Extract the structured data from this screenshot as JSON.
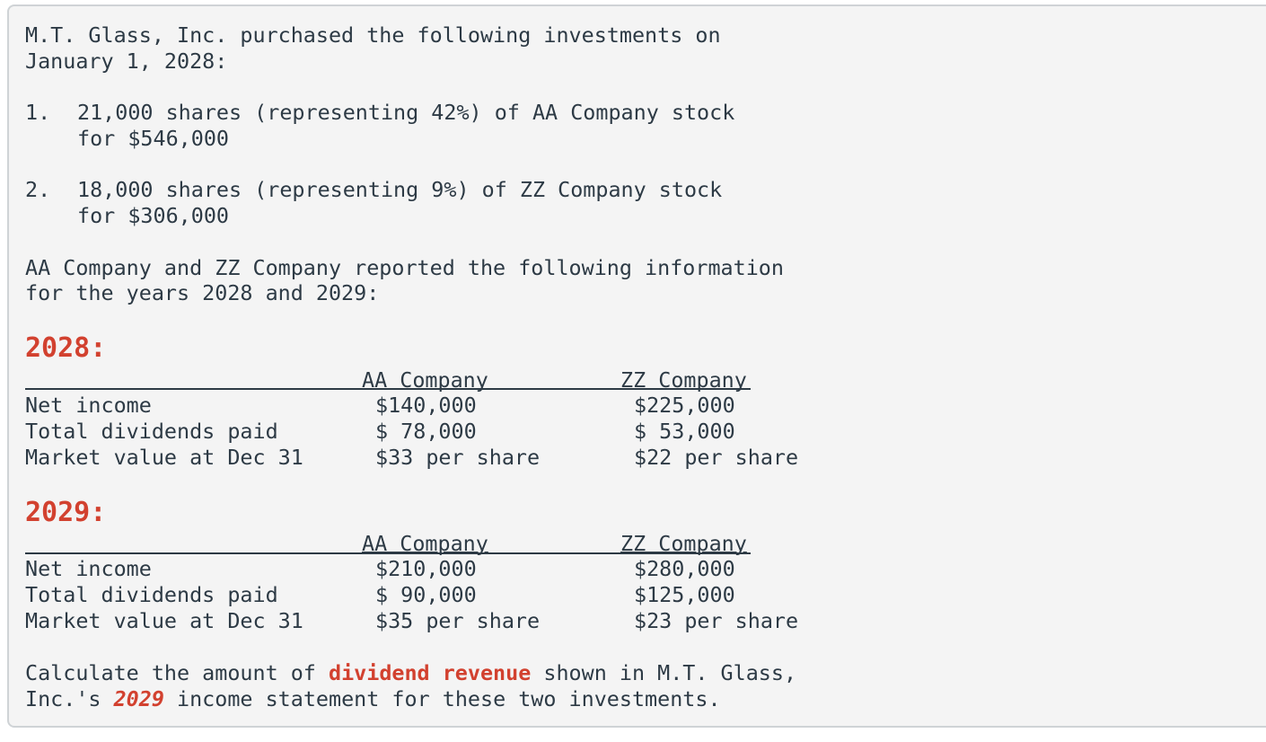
{
  "intro": [
    "M.T. Glass, Inc. purchased the following investments on",
    "January 1, 2028:"
  ],
  "list": [
    {
      "num": "1.",
      "lines": [
        "21,000 shares (representing 42%) of AA Company stock",
        "for $546,000"
      ]
    },
    {
      "num": "2.",
      "lines": [
        "18,000 shares (representing 9%) of ZZ Company stock",
        "for $306,000"
      ]
    }
  ],
  "info": [
    "AA Company and ZZ Company reported the following information",
    "for the years 2028 and 2029:"
  ],
  "tables": [
    {
      "year": "2028:",
      "headers": [
        "AA Company",
        "ZZ Company"
      ],
      "rows": [
        {
          "label": "Net income",
          "aa": "$140,000",
          "zz": "$225,000"
        },
        {
          "label": "Total dividends paid",
          "aa": "$ 78,000",
          "zz": "$ 53,000"
        },
        {
          "label": "Market value at Dec 31",
          "aa": "$33 per share",
          "zz": "$22 per share"
        }
      ]
    },
    {
      "year": "2029:",
      "headers": [
        "AA Company",
        "ZZ Company"
      ],
      "rows": [
        {
          "label": "Net income",
          "aa": "$210,000",
          "zz": "$280,000"
        },
        {
          "label": "Total dividends paid",
          "aa": "$ 90,000",
          "zz": "$125,000"
        },
        {
          "label": "Market value at Dec 31",
          "aa": "$35 per share",
          "zz": "$23 per share"
        }
      ]
    }
  ],
  "question": {
    "p1": "Calculate the amount of ",
    "h1": "dividend revenue",
    "p2": " shown in M.T. Glass,",
    "p3": "Inc.'s ",
    "h2": "2029",
    "p4": " income statement for these two investments."
  },
  "colors": {
    "accent": "#d2412f",
    "text": "#2d3a45",
    "background": "#f4f4f4"
  }
}
